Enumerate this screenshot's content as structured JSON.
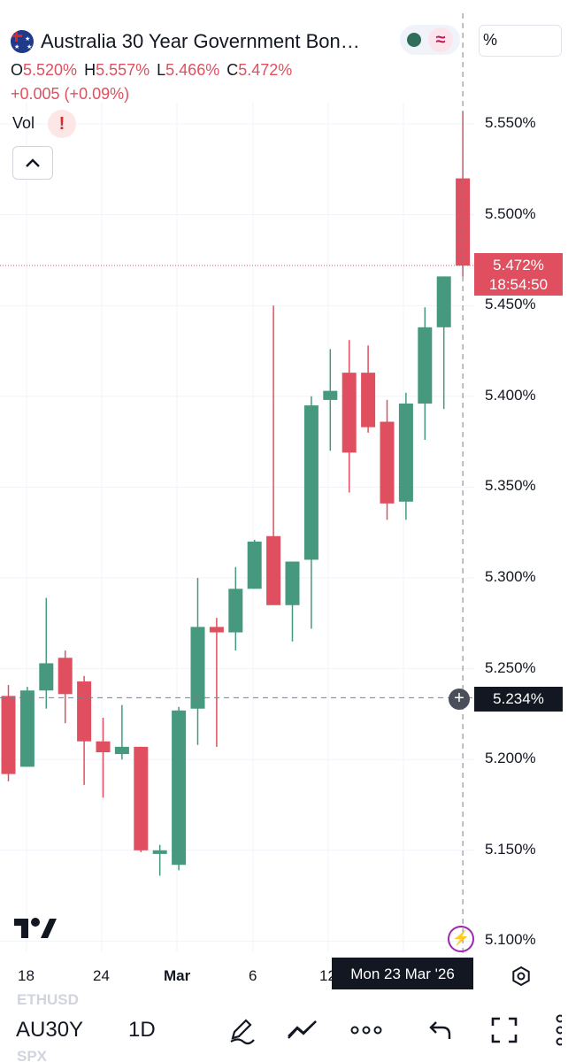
{
  "header": {
    "title": "Australia 30 Year Government Bon…",
    "flag_icon": "australia-flag-icon",
    "status_icon": "market-open-icon",
    "wave_icon": "wave-icon",
    "percent_label": "%"
  },
  "ohlc": {
    "o_label": "O",
    "o_value": "5.520%",
    "h_label": "H",
    "h_value": "5.557%",
    "l_label": "L",
    "l_value": "5.466%",
    "c_label": "C",
    "c_value": "5.472%",
    "change": "+0.005 (+0.09%)"
  },
  "indicator": {
    "vol_label": "Vol",
    "warning_glyph": "!"
  },
  "price_tag": {
    "price": "5.472%",
    "countdown": "18:54:50"
  },
  "crosshair": {
    "price": "5.234%",
    "date": "Mon 23 Mar '26",
    "price_value": 5.234
  },
  "y_axis_labels": [
    "5.550%",
    "5.500%",
    "5.450%",
    "5.400%",
    "5.350%",
    "5.300%",
    "5.250%",
    "5.200%",
    "5.150%",
    "5.100%"
  ],
  "x_axis_labels": [
    "18",
    "24",
    "Mar",
    "6",
    "12"
  ],
  "logo_icon": "tradingview-logo-icon",
  "ghost_symbols": [
    "ETHUSD",
    "SPX"
  ],
  "toolbar": {
    "symbol": "AU30Y",
    "timeframe": "1D",
    "icons": [
      "draw-pencil-icon",
      "indicators-icon",
      "more-icon",
      "undo-icon",
      "fullscreen-icon",
      "more-vertical-icon"
    ]
  },
  "colors": {
    "up": "#46997e",
    "down": "#e04f5f",
    "accent": "#9c27b0"
  },
  "chart_data": {
    "type": "candlestick",
    "title": "Australia 30 Year Government Bon…",
    "ylim": [
      5.095,
      5.577
    ],
    "y_ticks": [
      5.55,
      5.5,
      5.45,
      5.4,
      5.35,
      5.3,
      5.25,
      5.2,
      5.15,
      5.1
    ],
    "last_price": 5.472,
    "candles": [
      {
        "o": 5.235,
        "h": 5.241,
        "l": 5.188,
        "c": 5.192
      },
      {
        "o": 5.196,
        "h": 5.24,
        "l": 5.196,
        "c": 5.238
      },
      {
        "o": 5.238,
        "h": 5.289,
        "l": 5.228,
        "c": 5.253
      },
      {
        "o": 5.256,
        "h": 5.26,
        "l": 5.22,
        "c": 5.236
      },
      {
        "o": 5.243,
        "h": 5.246,
        "l": 5.186,
        "c": 5.21
      },
      {
        "o": 5.21,
        "h": 5.223,
        "l": 5.179,
        "c": 5.204
      },
      {
        "o": 5.203,
        "h": 5.23,
        "l": 5.2,
        "c": 5.207
      },
      {
        "o": 5.207,
        "h": 5.207,
        "l": 5.149,
        "c": 5.15
      },
      {
        "o": 5.148,
        "h": 5.153,
        "l": 5.136,
        "c": 5.15
      },
      {
        "o": 5.142,
        "h": 5.229,
        "l": 5.139,
        "c": 5.227
      },
      {
        "o": 5.228,
        "h": 5.3,
        "l": 5.208,
        "c": 5.273
      },
      {
        "o": 5.273,
        "h": 5.278,
        "l": 5.207,
        "c": 5.27
      },
      {
        "o": 5.27,
        "h": 5.306,
        "l": 5.26,
        "c": 5.294
      },
      {
        "o": 5.294,
        "h": 5.321,
        "l": 5.294,
        "c": 5.32
      },
      {
        "o": 5.323,
        "h": 5.45,
        "l": 5.285,
        "c": 5.285
      },
      {
        "o": 5.285,
        "h": 5.307,
        "l": 5.265,
        "c": 5.309
      },
      {
        "o": 5.31,
        "h": 5.4,
        "l": 5.272,
        "c": 5.395
      },
      {
        "o": 5.398,
        "h": 5.426,
        "l": 5.37,
        "c": 5.403
      },
      {
        "o": 5.413,
        "h": 5.431,
        "l": 5.347,
        "c": 5.369
      },
      {
        "o": 5.413,
        "h": 5.428,
        "l": 5.38,
        "c": 5.383
      },
      {
        "o": 5.386,
        "h": 5.398,
        "l": 5.332,
        "c": 5.341
      },
      {
        "o": 5.342,
        "h": 5.402,
        "l": 5.332,
        "c": 5.396
      },
      {
        "o": 5.396,
        "h": 5.449,
        "l": 5.376,
        "c": 5.438
      },
      {
        "o": 5.438,
        "h": 5.466,
        "l": 5.393,
        "c": 5.466
      },
      {
        "o": 5.52,
        "h": 5.557,
        "l": 5.466,
        "c": 5.472
      }
    ]
  }
}
